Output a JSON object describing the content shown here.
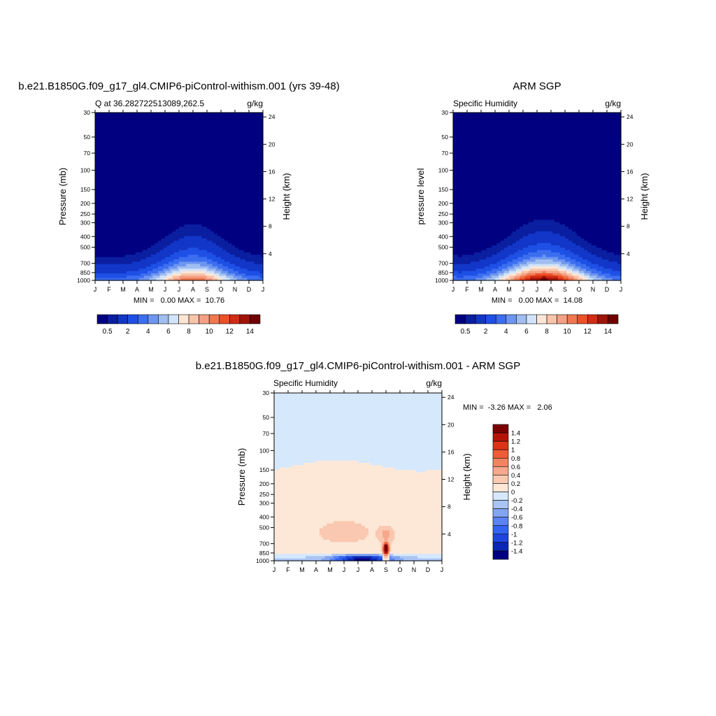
{
  "chart_data": [
    {
      "type": "heatmap",
      "panel": "model",
      "title": "b.e21.B1850G.f09_g17_gl4.CMIP6-piControl-withism.001 (yrs 39-48)",
      "left_label": "Q at 36.282722513089,262.5",
      "units": "g/kg",
      "ylabel": "Pressure (mb)",
      "ylabel_right": "Height (km)",
      "stats": "MIN =   0.00 MAX =  10.76",
      "x_categories": [
        "J",
        "F",
        "M",
        "A",
        "M",
        "J",
        "J",
        "A",
        "S",
        "O",
        "N",
        "D",
        "J"
      ],
      "pressure_ticks": [
        "30",
        "50",
        "70",
        "100",
        "150",
        "200",
        "250",
        "300",
        "400",
        "500",
        "700",
        "850",
        "1000"
      ],
      "height_ticks": [
        "24",
        "20",
        "16",
        "12",
        "8",
        "4"
      ],
      "contour_levels": [
        0.5,
        1,
        2,
        3,
        4,
        5,
        6,
        7,
        8,
        9,
        10,
        11,
        12,
        13,
        14
      ],
      "colorbar_labels": [
        "0.5",
        "2",
        "4",
        "6",
        "8",
        "10",
        "12",
        "14"
      ],
      "peak_month_index": 7,
      "max_value": 10.76
    },
    {
      "type": "heatmap",
      "panel": "obs",
      "title": "ARM SGP",
      "left_label": "Specific Humidity",
      "units": "g/kg",
      "ylabel": "pressure level",
      "ylabel_right": "Height (km)",
      "stats": "MIN =   0.00 MAX =  14.08",
      "x_categories": [
        "J",
        "F",
        "M",
        "A",
        "M",
        "J",
        "J",
        "A",
        "S",
        "O",
        "N",
        "D",
        "J"
      ],
      "pressure_ticks": [
        "30",
        "50",
        "70",
        "100",
        "150",
        "200",
        "250",
        "300",
        "400",
        "500",
        "700",
        "850",
        "1000"
      ],
      "height_ticks": [
        "24",
        "20",
        "16",
        "12",
        "8",
        "4"
      ],
      "contour_levels": [
        0.5,
        1,
        2,
        3,
        4,
        5,
        6,
        7,
        8,
        9,
        10,
        11,
        12,
        13,
        14
      ],
      "colorbar_labels": [
        "0.5",
        "2",
        "4",
        "6",
        "8",
        "10",
        "12",
        "14"
      ],
      "peak_month_index": 6.5,
      "max_value": 14.08
    },
    {
      "type": "heatmap",
      "panel": "diff",
      "title": "b.e21.B1850G.f09_g17_gl4.CMIP6-piControl-withism.001 - ARM SGP",
      "left_label": "Specific Humidity",
      "units": "g/kg",
      "ylabel": "Pressure (mb)",
      "ylabel_right": "Height (km)",
      "stats": "MIN =  -3.26 MAX =   2.06",
      "x_categories": [
        "J",
        "F",
        "M",
        "A",
        "M",
        "J",
        "J",
        "A",
        "S",
        "O",
        "N",
        "D",
        "J"
      ],
      "pressure_ticks": [
        "30",
        "50",
        "70",
        "100",
        "150",
        "200",
        "250",
        "300",
        "400",
        "500",
        "700",
        "850",
        "1000"
      ],
      "height_ticks": [
        "24",
        "20",
        "16",
        "12",
        "8",
        "4"
      ],
      "contour_levels": [
        -1.4,
        -1.2,
        -1,
        -0.8,
        -0.6,
        -0.4,
        -0.2,
        0,
        0.2,
        0.4,
        0.6,
        0.8,
        1,
        1.2,
        1.4
      ],
      "colorbar_labels": [
        "1.4",
        "1.2",
        "1",
        "0.8",
        "0.6",
        "0.4",
        "0.2",
        "0",
        "-0.2",
        "-0.4",
        "-0.6",
        "-0.8",
        "-1",
        "-1.2",
        "-1.4"
      ]
    }
  ],
  "colors": {
    "seq": [
      "#000080",
      "#0a1ea0",
      "#1237c8",
      "#1e50e6",
      "#3c6ef0",
      "#6e96f0",
      "#a0bef0",
      "#d2e4fa",
      "#fde6d6",
      "#f8c4aa",
      "#f4a084",
      "#f07850",
      "#ec5028",
      "#d22c14",
      "#a01408",
      "#6e0000"
    ],
    "div": [
      "#000080",
      "#0a28b4",
      "#1e46dc",
      "#3264f0",
      "#5a82f0",
      "#82a5f0",
      "#aac4f4",
      "#d6e8fc",
      "#fde8d8",
      "#fac8b0",
      "#f6a88c",
      "#f28462",
      "#ee5c38",
      "#dc3418",
      "#b41408",
      "#7a0000"
    ]
  }
}
